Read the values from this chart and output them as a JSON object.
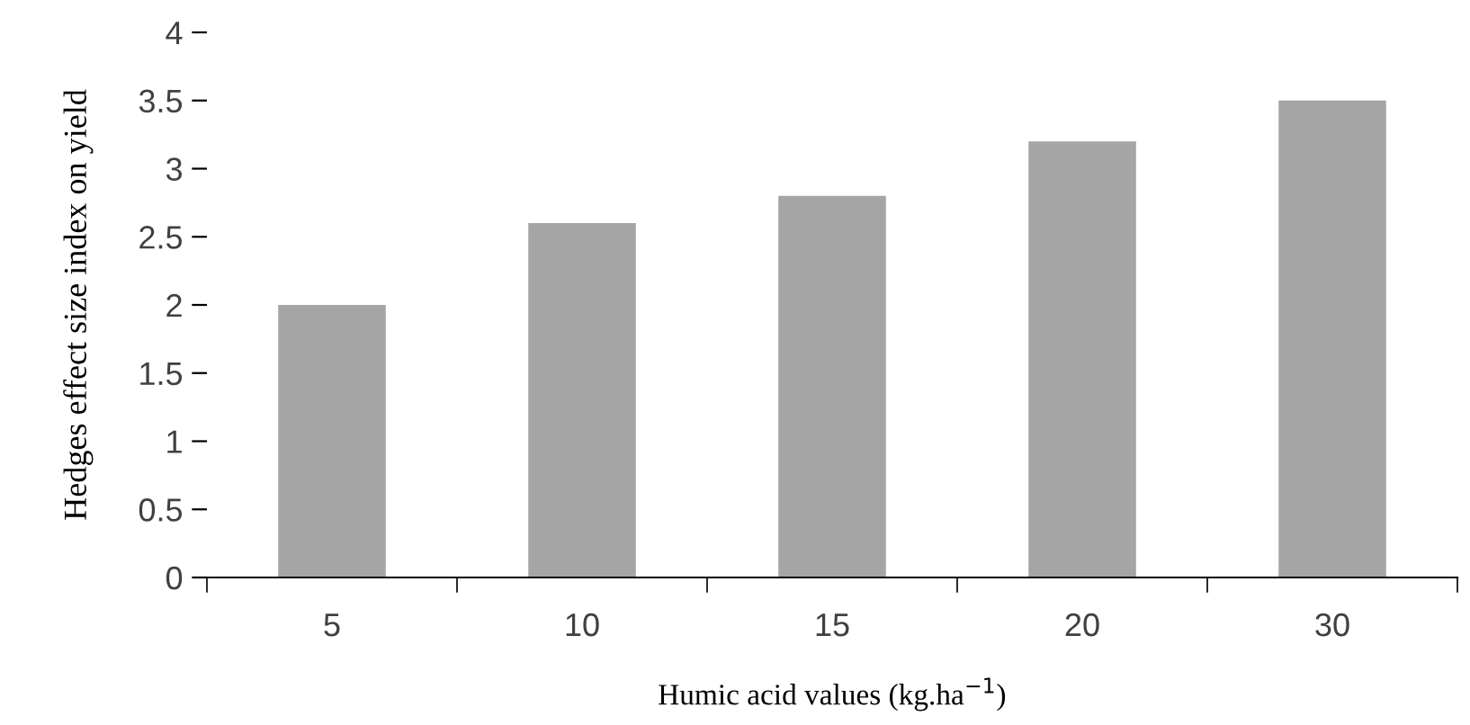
{
  "chart_data": {
    "type": "bar",
    "xlabel": "Humic acid values (kg.ha$^{−1}$)",
    "ylabel": "Hedges effect size index on yield",
    "categories": [
      "5",
      "10",
      "15",
      "20",
      "30"
    ],
    "values": [
      2.0,
      2.6,
      2.8,
      3.2,
      3.5
    ],
    "color": "#a5a5a5",
    "ylim": [
      0,
      4
    ],
    "yticks": [
      0,
      0.5,
      1,
      1.5,
      2,
      2.5,
      3,
      3.5,
      4
    ],
    "grid": false
  }
}
